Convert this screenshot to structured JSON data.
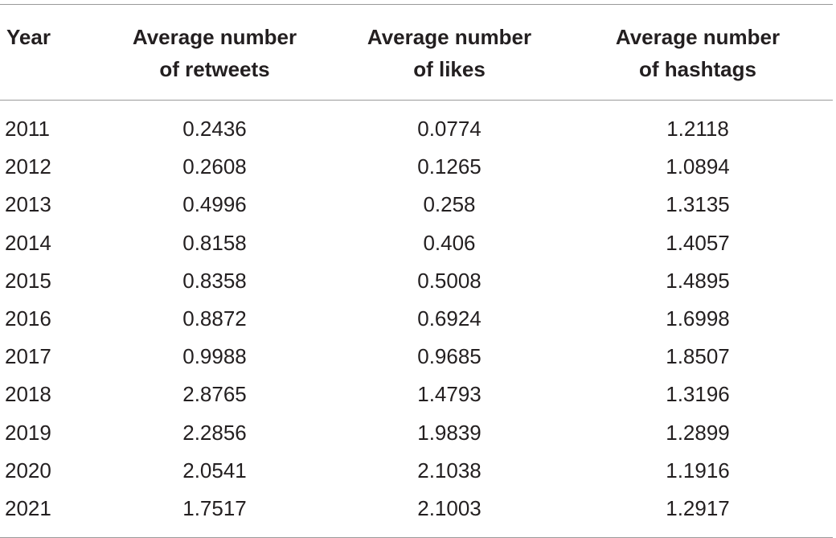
{
  "table": {
    "headers": [
      {
        "line1": "Year",
        "line2": ""
      },
      {
        "line1": "Average number",
        "line2": "of retweets"
      },
      {
        "line1": "Average number",
        "line2": "of likes"
      },
      {
        "line1": "Average number",
        "line2": "of hashtags"
      }
    ],
    "rows": [
      {
        "year": "2011",
        "retweets": "0.2436",
        "likes": "0.0774",
        "hashtags": "1.2118"
      },
      {
        "year": "2012",
        "retweets": "0.2608",
        "likes": "0.1265",
        "hashtags": "1.0894"
      },
      {
        "year": "2013",
        "retweets": "0.4996",
        "likes": "0.258",
        "hashtags": "1.3135"
      },
      {
        "year": "2014",
        "retweets": "0.8158",
        "likes": "0.406",
        "hashtags": "1.4057"
      },
      {
        "year": "2015",
        "retweets": "0.8358",
        "likes": "0.5008",
        "hashtags": "1.4895"
      },
      {
        "year": "2016",
        "retweets": "0.8872",
        "likes": "0.6924",
        "hashtags": "1.6998"
      },
      {
        "year": "2017",
        "retweets": "0.9988",
        "likes": "0.9685",
        "hashtags": "1.8507"
      },
      {
        "year": "2018",
        "retweets": "2.8765",
        "likes": "1.4793",
        "hashtags": "1.3196"
      },
      {
        "year": "2019",
        "retweets": "2.2856",
        "likes": "1.9839",
        "hashtags": "1.2899"
      },
      {
        "year": "2020",
        "retweets": "2.0541",
        "likes": "2.1038",
        "hashtags": "1.1916"
      },
      {
        "year": "2021",
        "retweets": "1.7517",
        "likes": "2.1003",
        "hashtags": "1.2917"
      }
    ]
  }
}
